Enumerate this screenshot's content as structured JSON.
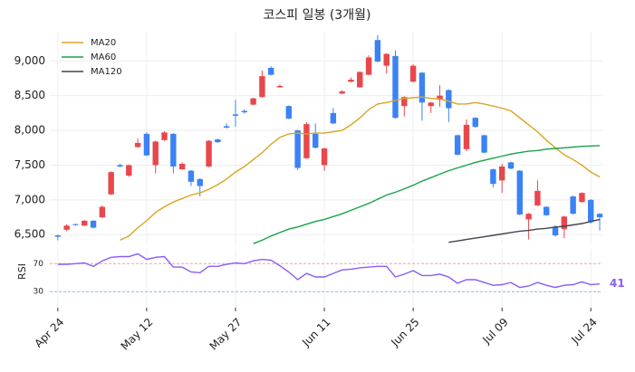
{
  "chart_data": [
    {
      "type": "candlestick",
      "title": "코스피 일봉 (3개월)",
      "open": [
        6490,
        6570,
        6650,
        6630,
        6700,
        6750,
        7080,
        7500,
        7350,
        7760,
        7950,
        7500,
        7860,
        7950,
        7440,
        7420,
        7300,
        7480,
        7870,
        8060,
        8230,
        8280,
        8370,
        8480,
        8900,
        8620,
        8350,
        8000,
        7600,
        7950,
        7500,
        8250,
        8530,
        8700,
        8620,
        8800,
        9300,
        8930,
        9070,
        8350,
        8700,
        8830,
        8350,
        8440,
        8580,
        7930,
        7730,
        8180,
        7930,
        7440,
        7280,
        7540,
        7420,
        6720,
        6920,
        6900,
        6610,
        6580,
        7050,
        6970,
        7000,
        6800
      ],
      "high": [
        6500,
        6650,
        6660,
        6710,
        6710,
        6920,
        7410,
        7520,
        7510,
        7880,
        7970,
        7850,
        7990,
        7960,
        7540,
        7430,
        7310,
        7860,
        7880,
        8100,
        8440,
        8300,
        8470,
        8860,
        8920,
        8660,
        8360,
        8010,
        8120,
        8100,
        7750,
        8320,
        8580,
        8760,
        8850,
        9080,
        9370,
        9110,
        9150,
        8490,
        8950,
        8840,
        8410,
        8650,
        8590,
        7940,
        8160,
        8190,
        7940,
        7450,
        7520,
        7550,
        7430,
        6810,
        7280,
        6910,
        6640,
        6770,
        7060,
        7110,
        7010,
        6810
      ],
      "low": [
        6420,
        6550,
        6630,
        6620,
        6590,
        6740,
        7070,
        7470,
        7330,
        7750,
        7630,
        7380,
        7850,
        7380,
        7430,
        7200,
        7050,
        7470,
        7820,
        8030,
        8050,
        8240,
        8360,
        8470,
        8790,
        8610,
        8160,
        7430,
        7590,
        7740,
        7420,
        8090,
        8520,
        8690,
        8610,
        8790,
        8980,
        8820,
        8170,
        8200,
        8690,
        8140,
        8250,
        8340,
        8120,
        7640,
        7700,
        8040,
        7670,
        7180,
        7100,
        7440,
        6780,
        6430,
        6910,
        6770,
        6470,
        6450,
        6790,
        6960,
        6660,
        6560
      ],
      "close": [
        6470,
        6630,
        6640,
        6700,
        6600,
        6900,
        7400,
        7480,
        7500,
        7820,
        7640,
        7840,
        7970,
        7480,
        7520,
        7260,
        7200,
        7850,
        7830,
        8040,
        8210,
        8260,
        8460,
        8780,
        8800,
        8640,
        8170,
        7460,
        8090,
        7750,
        7740,
        8100,
        8560,
        8730,
        8840,
        9050,
        8990,
        9100,
        8180,
        8480,
        8930,
        8400,
        8400,
        8500,
        8320,
        7650,
        8080,
        8050,
        7680,
        7230,
        7480,
        7450,
        6790,
        6800,
        7130,
        6780,
        6490,
        6760,
        6800,
        7100,
        6680,
        6750
      ],
      "up_color": "#e8474c",
      "down_color": "#3b82f6",
      "series": [
        {
          "name": "MA20",
          "color": "#daa520",
          "values": [
            null,
            null,
            null,
            null,
            null,
            null,
            null,
            6420,
            6480,
            6600,
            6700,
            6820,
            6900,
            6970,
            7020,
            7070,
            7100,
            7150,
            7220,
            7300,
            7400,
            7480,
            7580,
            7680,
            7800,
            7900,
            7950,
            7960,
            7950,
            7960,
            7960,
            7980,
            8000,
            8080,
            8180,
            8300,
            8380,
            8400,
            8430,
            8460,
            8470,
            8480,
            8460,
            8450,
            8420,
            8380,
            8380,
            8400,
            8380,
            8350,
            8320,
            8280,
            8180,
            8080,
            7980,
            7860,
            7750,
            7650,
            7580,
            7500,
            7400,
            7330
          ]
        },
        {
          "name": "MA60",
          "color": "#16a34a",
          "values": [
            null,
            null,
            null,
            null,
            null,
            null,
            null,
            null,
            null,
            null,
            null,
            null,
            null,
            null,
            null,
            null,
            null,
            null,
            null,
            null,
            null,
            null,
            6370,
            6420,
            6480,
            6530,
            6580,
            6610,
            6650,
            6690,
            6720,
            6760,
            6800,
            6850,
            6900,
            6950,
            7010,
            7070,
            7110,
            7160,
            7210,
            7270,
            7320,
            7370,
            7420,
            7460,
            7500,
            7540,
            7570,
            7600,
            7630,
            7660,
            7680,
            7700,
            7710,
            7730,
            7740,
            7750,
            7760,
            7770,
            7775,
            7780
          ]
        },
        {
          "name": "MA120",
          "color": "#3f4550",
          "values": [
            null,
            null,
            null,
            null,
            null,
            null,
            null,
            null,
            null,
            null,
            null,
            null,
            null,
            null,
            null,
            null,
            null,
            null,
            null,
            null,
            null,
            null,
            null,
            null,
            null,
            null,
            null,
            null,
            null,
            null,
            null,
            null,
            null,
            null,
            null,
            null,
            null,
            null,
            null,
            null,
            null,
            null,
            null,
            null,
            6390,
            6410,
            6430,
            6450,
            6470,
            6490,
            6510,
            6530,
            6550,
            6560,
            6580,
            6590,
            6610,
            6620,
            6640,
            6660,
            6690,
            6720
          ]
        }
      ],
      "xlim": [
        -0.9,
        61.3
      ],
      "ylim": [
        6360,
        9420
      ],
      "yticks": [
        {
          "value": 6500,
          "label": "6,500"
        },
        {
          "value": 7000,
          "label": "7,000"
        },
        {
          "value": 7500,
          "label": "7,500"
        },
        {
          "value": 8000,
          "label": "8,000"
        },
        {
          "value": 8500,
          "label": "8,500"
        },
        {
          "value": 9000,
          "label": "9,000"
        }
      ],
      "grid": true,
      "legend": "upper left"
    },
    {
      "type": "line",
      "ylabel": "RSI",
      "color": "#8b5cf6",
      "values": [
        69,
        69,
        70,
        71,
        66,
        74,
        79,
        80,
        80,
        84,
        76,
        79,
        80,
        65,
        65,
        58,
        57,
        66,
        66,
        69,
        71,
        70,
        74,
        76,
        75,
        67,
        58,
        47,
        56,
        51,
        51,
        56,
        61,
        62,
        64,
        65,
        66,
        66,
        51,
        55,
        60,
        53,
        53,
        55,
        51,
        42,
        47,
        47,
        43,
        39,
        40,
        43,
        36,
        38,
        43,
        39,
        36,
        39,
        40,
        44,
        40,
        41
      ],
      "reference_lines": [
        {
          "value": 70,
          "color": "#f0a0a0"
        },
        {
          "value": 30,
          "color": "#93b4e0"
        }
      ],
      "xlim": [
        -0.9,
        61.3
      ],
      "ylim": [
        7,
        91
      ],
      "yticks": [
        30,
        70
      ],
      "xticks": [
        {
          "value": 0,
          "label": "Apr 24"
        },
        {
          "value": 10,
          "label": "May 12"
        },
        {
          "value": 20,
          "label": "May 27"
        },
        {
          "value": 30,
          "label": "Jun 11"
        },
        {
          "value": 40,
          "label": "Jun 25"
        },
        {
          "value": 50,
          "label": "Jul 09"
        },
        {
          "value": 60,
          "label": "Jul 24"
        }
      ],
      "grid": true
    }
  ]
}
